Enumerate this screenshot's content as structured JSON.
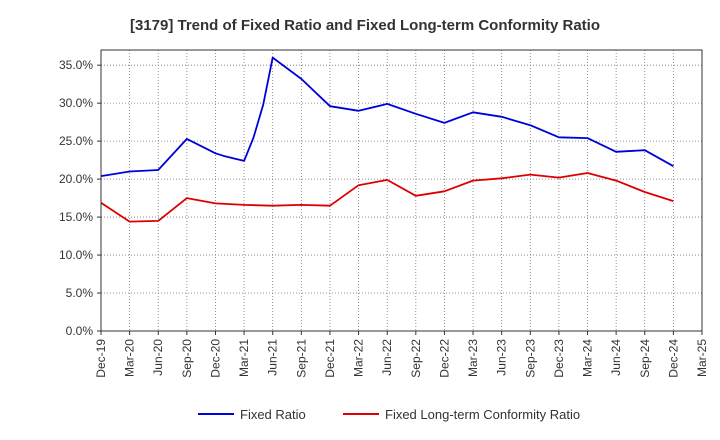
{
  "chart_data": {
    "type": "line",
    "title": "[3179]  Trend of Fixed Ratio and Fixed Long-term Conformity Ratio",
    "xlabel": "",
    "ylabel": "",
    "x": [
      "Dec-19",
      "Mar-20",
      "Jun-20",
      "Sep-20",
      "Dec-20",
      "Mar-21",
      "Jun-21",
      "Sep-21",
      "Dec-21",
      "Mar-22",
      "Jun-22",
      "Sep-22",
      "Dec-22",
      "Mar-23",
      "Jun-23",
      "Sep-23",
      "Dec-23",
      "Mar-24",
      "Jun-24",
      "Sep-24",
      "Dec-24",
      "Mar-25"
    ],
    "yticks": [
      "0.0%",
      "5.0%",
      "10.0%",
      "15.0%",
      "20.0%",
      "25.0%",
      "30.0%",
      "35.0%"
    ],
    "ylim": [
      0,
      37
    ],
    "grid": true,
    "legend_position": "bottom",
    "series": [
      {
        "name": "Fixed Ratio",
        "color": "#0000dd",
        "points": [
          [
            "Dec-19",
            20.4
          ],
          [
            "Mar-20",
            21.0
          ],
          [
            "Jun-20",
            21.2
          ],
          [
            "Sep-20",
            25.3
          ],
          [
            "Dec-20",
            23.4
          ],
          [
            "Jan-21",
            23.0
          ],
          [
            "Feb-21",
            22.7
          ],
          [
            "Mar-21",
            22.4
          ],
          [
            "Apr-21",
            25.5
          ],
          [
            "May-21",
            29.8
          ],
          [
            "Jun-21",
            36.0
          ],
          [
            "Sep-21",
            33.2
          ],
          [
            "Dec-21",
            29.6
          ],
          [
            "Mar-22",
            29.0
          ],
          [
            "Jun-22",
            29.9
          ],
          [
            "Sep-22",
            28.6
          ],
          [
            "Dec-22",
            27.4
          ],
          [
            "Mar-23",
            28.8
          ],
          [
            "Jun-23",
            28.2
          ],
          [
            "Sep-23",
            27.1
          ],
          [
            "Dec-23",
            25.5
          ],
          [
            "Mar-24",
            25.4
          ],
          [
            "Jun-24",
            23.6
          ],
          [
            "Sep-24",
            23.8
          ],
          [
            "Dec-24",
            21.7
          ]
        ]
      },
      {
        "name": "Fixed Long-term Conformity Ratio",
        "color": "#dd0000",
        "points": [
          [
            "Dec-19",
            16.9
          ],
          [
            "Mar-20",
            14.4
          ],
          [
            "Jun-20",
            14.5
          ],
          [
            "Sep-20",
            17.5
          ],
          [
            "Dec-20",
            16.8
          ],
          [
            "Mar-21",
            16.6
          ],
          [
            "Jun-21",
            16.5
          ],
          [
            "Sep-21",
            16.6
          ],
          [
            "Dec-21",
            16.5
          ],
          [
            "Mar-22",
            19.2
          ],
          [
            "Jun-22",
            19.9
          ],
          [
            "Sep-22",
            17.8
          ],
          [
            "Dec-22",
            18.4
          ],
          [
            "Mar-23",
            19.8
          ],
          [
            "Jun-23",
            20.1
          ],
          [
            "Sep-23",
            20.6
          ],
          [
            "Dec-23",
            20.2
          ],
          [
            "Mar-24",
            20.8
          ],
          [
            "Jun-24",
            19.8
          ],
          [
            "Sep-24",
            18.3
          ],
          [
            "Dec-24",
            17.1
          ]
        ]
      }
    ]
  }
}
